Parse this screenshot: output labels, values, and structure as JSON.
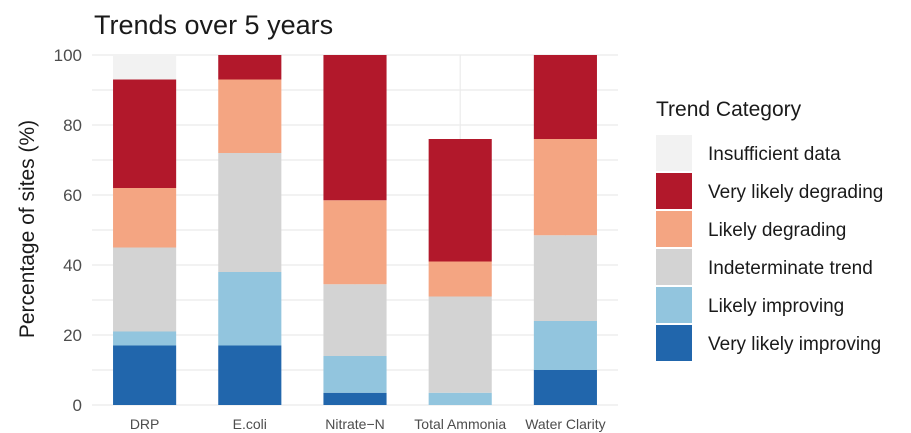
{
  "chart_data": {
    "type": "bar",
    "stacked": true,
    "title": "Trends over 5 years",
    "xlabel": "",
    "ylabel": "Percentage of sites (%)",
    "ylim": [
      0,
      100
    ],
    "yticks": [
      0,
      20,
      40,
      60,
      80,
      100
    ],
    "grid": true,
    "categories": [
      "DRP",
      "E.coli",
      "Nitrate−N",
      "Total Ammonia",
      "Water Clarity"
    ],
    "legend": {
      "title": "Trend Category",
      "position": "right"
    },
    "series": [
      {
        "name": "Very likely improving",
        "color": "#2166ac",
        "values": [
          17,
          17,
          3.5,
          0,
          10
        ]
      },
      {
        "name": "Likely improving",
        "color": "#92c5de",
        "values": [
          4,
          21,
          10.5,
          3.5,
          14
        ]
      },
      {
        "name": "Indeterminate trend",
        "color": "#d3d3d3",
        "values": [
          24,
          34,
          20.5,
          27.5,
          24.5
        ]
      },
      {
        "name": "Likely degrading",
        "color": "#f4a582",
        "values": [
          17,
          21,
          24,
          10,
          27.5
        ]
      },
      {
        "name": "Very likely degrading",
        "color": "#b2182b",
        "values": [
          31,
          7,
          41.5,
          35,
          24
        ]
      },
      {
        "name": "Insufficient data",
        "color": "#f2f2f2",
        "values": [
          7,
          0,
          0,
          0,
          0
        ]
      }
    ],
    "legend_order": [
      "Insufficient data",
      "Very likely degrading",
      "Likely degrading",
      "Indeterminate trend",
      "Likely improving",
      "Very likely improving"
    ]
  }
}
